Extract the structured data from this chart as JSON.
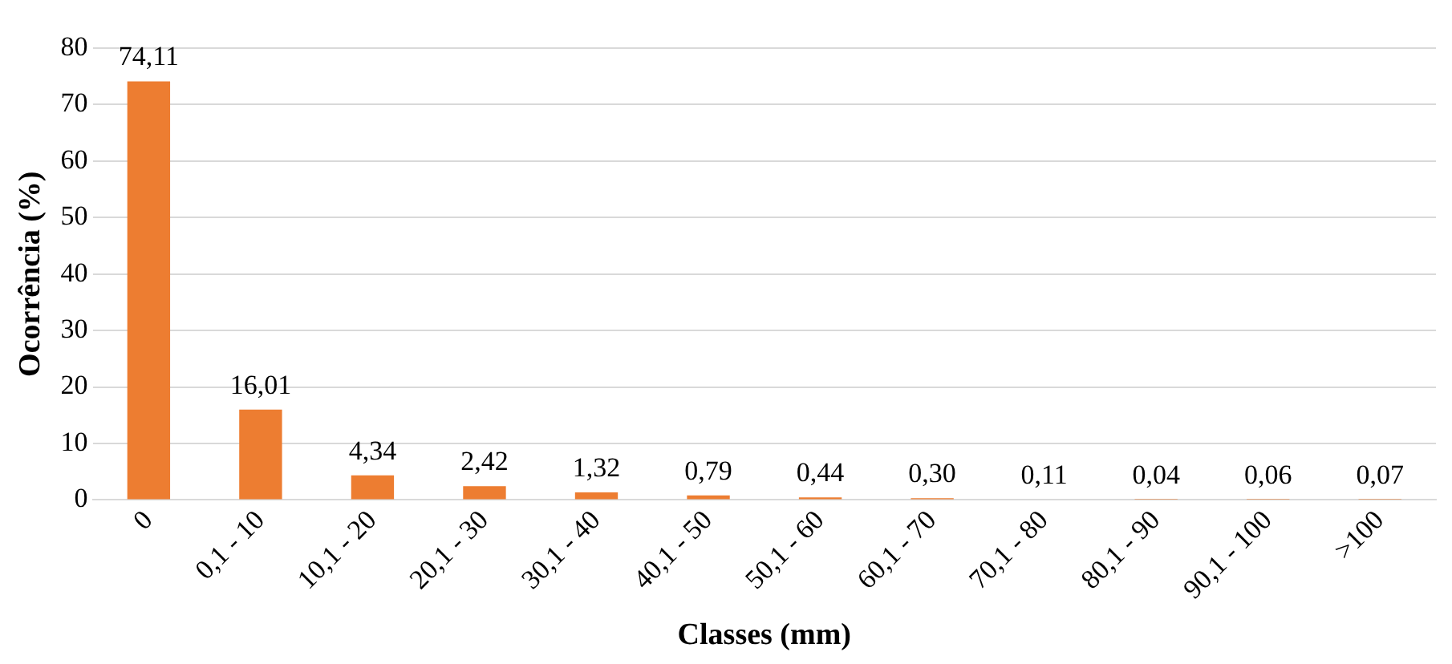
{
  "chart_data": {
    "type": "bar",
    "xlabel": "Classes (mm)",
    "ylabel": "Ocorrência (%)",
    "categories": [
      "0",
      "0,1 - 10",
      "10,1 - 20",
      "20,1 - 30",
      "30,1 - 40",
      "40,1 - 50",
      "50,1 - 60",
      "60,1 - 70",
      "70,1 - 80",
      "80,1 - 90",
      "90,1 - 100",
      ">100"
    ],
    "values": [
      74.11,
      16.01,
      4.34,
      2.42,
      1.32,
      0.79,
      0.44,
      0.3,
      0.11,
      0.04,
      0.06,
      0.07
    ],
    "value_labels": [
      "74,11",
      "16,01",
      "4,34",
      "2,42",
      "1,32",
      "0,79",
      "0,44",
      "0,30",
      "0,11",
      "0,04",
      "0,06",
      "0,07"
    ],
    "color": "#ed7d31",
    "ylim": [
      0,
      80
    ],
    "yticks": [
      0,
      10,
      20,
      30,
      40,
      50,
      60,
      70,
      80
    ],
    "grid": "y",
    "legend": false
  }
}
